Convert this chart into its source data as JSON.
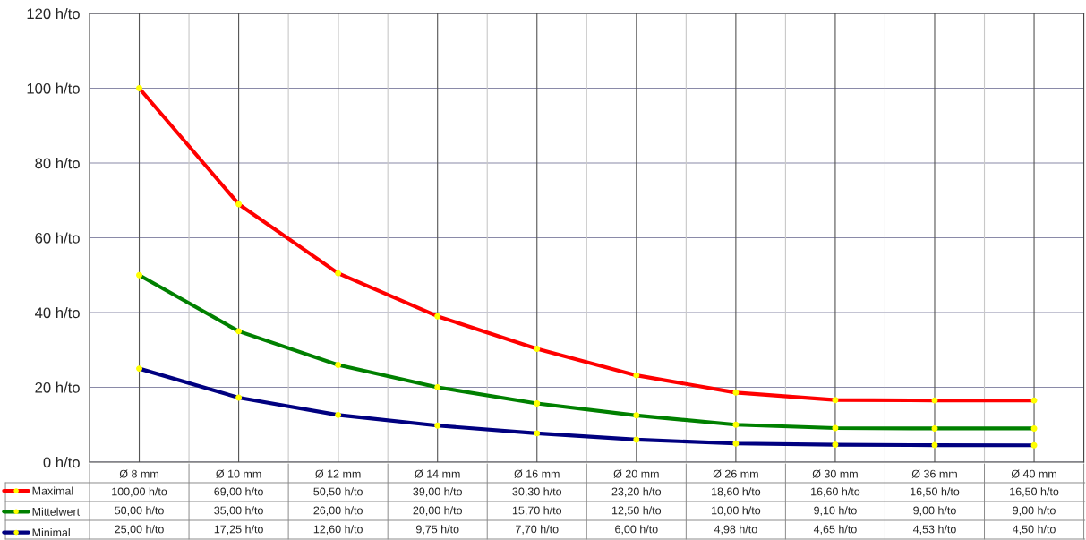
{
  "chart_data": {
    "type": "line",
    "categories": [
      "Ø 8 mm",
      "Ø 10 mm",
      "Ø 12 mm",
      "Ø 14 mm",
      "Ø 16 mm",
      "Ø 20 mm",
      "Ø 26 mm",
      "Ø 30 mm",
      "Ø 36 mm",
      "Ø 40 mm"
    ],
    "series": [
      {
        "name": "Maximal",
        "color": "#ff0000",
        "values": [
          100.0,
          69.0,
          50.5,
          39.0,
          30.3,
          23.2,
          18.6,
          16.6,
          16.5,
          16.5
        ],
        "value_labels": [
          "100,00 h/to",
          "69,00 h/to",
          "50,50 h/to",
          "39,00 h/to",
          "30,30 h/to",
          "23,20 h/to",
          "18,60 h/to",
          "16,60 h/to",
          "16,50 h/to",
          "16,50 h/to"
        ]
      },
      {
        "name": "Mittelwert",
        "color": "#008000",
        "values": [
          50.0,
          35.0,
          26.0,
          20.0,
          15.7,
          12.5,
          10.0,
          9.1,
          9.0,
          9.0
        ],
        "value_labels": [
          "50,00 h/to",
          "35,00 h/to",
          "26,00 h/to",
          "20,00 h/to",
          "15,70 h/to",
          "12,50 h/to",
          "10,00 h/to",
          "9,10 h/to",
          "9,00 h/to",
          "9,00 h/to"
        ]
      },
      {
        "name": "Minimal",
        "color": "#000080",
        "values": [
          25.0,
          17.25,
          12.6,
          9.75,
          7.7,
          6.0,
          4.98,
          4.65,
          4.53,
          4.5
        ],
        "value_labels": [
          "25,00 h/to",
          "17,25 h/to",
          "12,60 h/to",
          "9,75 h/to",
          "7,70 h/to",
          "6,00 h/to",
          "4,98 h/to",
          "4,65 h/to",
          "4,53 h/to",
          "4,50 h/to"
        ]
      }
    ],
    "ylim": [
      0,
      120
    ],
    "yticks": [
      {
        "value": 0,
        "label": "0 h/to"
      },
      {
        "value": 20,
        "label": "20 h/to"
      },
      {
        "value": 40,
        "label": "40 h/to"
      },
      {
        "value": 60,
        "label": "60 h/to"
      },
      {
        "value": 80,
        "label": "80 h/to"
      },
      {
        "value": 100,
        "label": "100 h/to"
      },
      {
        "value": 120,
        "label": "120 h/to"
      }
    ],
    "grid": true,
    "legend": "bottom",
    "marker": "circle",
    "line_style": "solid"
  }
}
